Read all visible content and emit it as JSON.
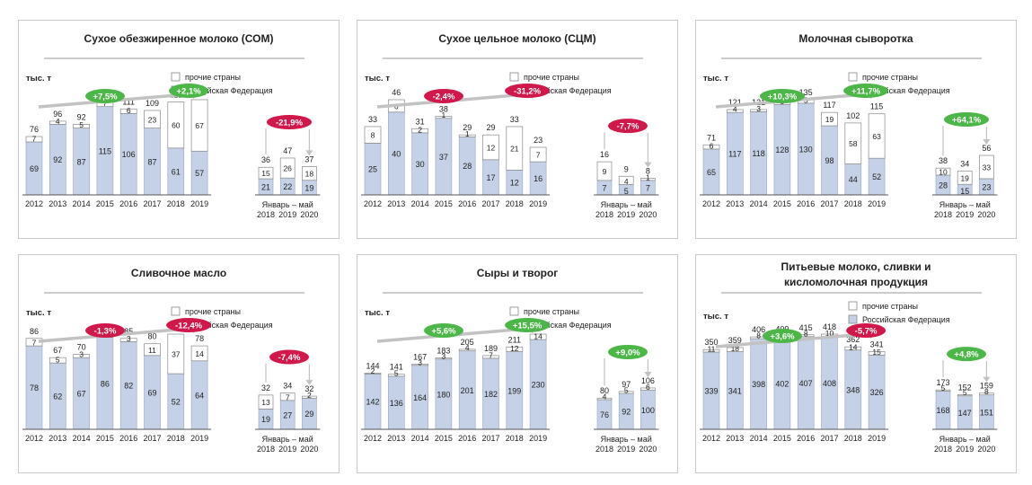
{
  "colors": {
    "russia": "#c5d1e6",
    "other": "#ffffff",
    "green": "#4cb648",
    "red": "#d0184b",
    "trend_arrow": "#c2c2c2",
    "axis": "#555555",
    "title_rule": "#999999"
  },
  "legend": {
    "other": "прочие страны",
    "russia": "Российская Федерация"
  },
  "period_label": "Январь – май",
  "chart_data": [
    {
      "type": "bar",
      "stacked": true,
      "title": "Сухое обезжиренное молоко (СОМ)",
      "ylabel": "тыс. т",
      "years": [
        "2012",
        "2013",
        "2014",
        "2015",
        "2016",
        "2017",
        "2018",
        "2019"
      ],
      "months": [
        "2018",
        "2019",
        "2020"
      ],
      "year_russia": [
        69,
        92,
        87,
        115,
        106,
        87,
        61,
        57
      ],
      "year_other": [
        7,
        4,
        5,
        7,
        6,
        23,
        60,
        67
      ],
      "year_total": [
        76,
        96,
        92,
        122,
        111,
        109,
        121,
        124
      ],
      "month_russia": [
        21,
        22,
        19
      ],
      "month_other": [
        15,
        26,
        18
      ],
      "month_total": [
        36,
        47,
        37
      ],
      "cagr": {
        "text": "+7,5%",
        "sign": "up"
      },
      "growth_2019": {
        "text": "+2,1%",
        "sign": "up"
      },
      "growth_jan_may": {
        "text": "-21,9%",
        "sign": "down"
      }
    },
    {
      "type": "bar",
      "stacked": true,
      "title": "Сухое цельное молоко (СЦМ)",
      "ylabel": "тыс. т",
      "years": [
        "2012",
        "2013",
        "2014",
        "2015",
        "2016",
        "2017",
        "2018",
        "2019"
      ],
      "months": [
        "2018",
        "2019",
        "2020"
      ],
      "year_russia": [
        25,
        40,
        30,
        37,
        28,
        17,
        12,
        16
      ],
      "year_other": [
        8,
        6,
        2,
        1,
        1,
        12,
        21,
        7
      ],
      "year_total": [
        33,
        46,
        31,
        38,
        29,
        29,
        33,
        23
      ],
      "month_russia": [
        7,
        5,
        7
      ],
      "month_other": [
        9,
        4,
        1
      ],
      "month_total": [
        16,
        9,
        8
      ],
      "cagr": {
        "text": "-2,4%",
        "sign": "down"
      },
      "growth_2019": {
        "text": "-31,2%",
        "sign": "down"
      },
      "growth_jan_may": {
        "text": "-7,7%",
        "sign": "down"
      }
    },
    {
      "type": "bar",
      "stacked": true,
      "title": "Молочная сыворотка",
      "ylabel": "тыс. т",
      "years": [
        "2012",
        "2013",
        "2014",
        "2015",
        "2016",
        "2017",
        "2018",
        "2019"
      ],
      "months": [
        "2018",
        "2019",
        "2020"
      ],
      "year_russia": [
        65,
        117,
        118,
        128,
        130,
        98,
        44,
        52
      ],
      "year_other": [
        6,
        4,
        3,
        3,
        5,
        19,
        58,
        63
      ],
      "year_total": [
        71,
        121,
        121,
        131,
        135,
        117,
        102,
        115
      ],
      "month_russia": [
        28,
        15,
        23
      ],
      "month_other": [
        10,
        19,
        33
      ],
      "month_total": [
        38,
        34,
        56
      ],
      "cagr": {
        "text": "+10,3%",
        "sign": "up"
      },
      "growth_2019": {
        "text": "+11,7%",
        "sign": "up"
      },
      "growth_jan_may": {
        "text": "+64,1%",
        "sign": "up"
      }
    },
    {
      "type": "bar",
      "stacked": true,
      "title": "Сливочное масло",
      "ylabel": "тыс. т",
      "years": [
        "2012",
        "2013",
        "2014",
        "2015",
        "2016",
        "2017",
        "2018",
        "2019"
      ],
      "months": [
        "2018",
        "2019",
        "2020"
      ],
      "year_russia": [
        78,
        62,
        67,
        86,
        82,
        69,
        52,
        64
      ],
      "year_other": [
        7,
        5,
        3,
        2,
        3,
        11,
        37,
        14
      ],
      "year_total": [
        86,
        67,
        70,
        88,
        85,
        80,
        89,
        78
      ],
      "month_russia": [
        19,
        27,
        29
      ],
      "month_other": [
        13,
        7,
        2
      ],
      "month_total": [
        32,
        34,
        32
      ],
      "cagr": {
        "text": "-1,3%",
        "sign": "down"
      },
      "growth_2019": {
        "text": "-12,4%",
        "sign": "down"
      },
      "growth_jan_may": {
        "text": "-7,4%",
        "sign": "down"
      }
    },
    {
      "type": "bar",
      "stacked": true,
      "title": "Сыры и творог",
      "ylabel": "тыс. т",
      "years": [
        "2012",
        "2013",
        "2014",
        "2015",
        "2016",
        "2017",
        "2018",
        "2019"
      ],
      "months": [
        "2018",
        "2019",
        "2020"
      ],
      "year_russia": [
        142,
        136,
        164,
        180,
        201,
        182,
        199,
        230
      ],
      "year_other": [
        2,
        5,
        3,
        3,
        4,
        7,
        12,
        14
      ],
      "year_total": [
        144,
        141,
        167,
        183,
        205,
        189,
        211,
        244
      ],
      "month_russia": [
        76,
        92,
        100
      ],
      "month_other": [
        4,
        5,
        6
      ],
      "month_total": [
        80,
        97,
        106
      ],
      "cagr": {
        "text": "+5,6%",
        "sign": "up"
      },
      "growth_2019": {
        "text": "+15,5%",
        "sign": "up"
      },
      "growth_jan_may": {
        "text": "+9,0%",
        "sign": "up"
      }
    },
    {
      "type": "bar",
      "stacked": true,
      "title": "Питьевые молоко, сливки и кисломолочная продукция",
      "title_lines": [
        "Питьевые молоко, сливки и",
        "кисломолочная продукция"
      ],
      "ylabel": "тыс. т",
      "years": [
        "2012",
        "2013",
        "2014",
        "2015",
        "2016",
        "2017",
        "2018",
        "2019"
      ],
      "months": [
        "2018",
        "2019",
        "2020"
      ],
      "year_russia": [
        339,
        341,
        398,
        402,
        407,
        408,
        348,
        326
      ],
      "year_other": [
        11,
        18,
        8,
        7,
        8,
        10,
        14,
        15
      ],
      "year_total": [
        350,
        359,
        406,
        409,
        415,
        418,
        362,
        341
      ],
      "month_russia": [
        168,
        147,
        151
      ],
      "month_other": [
        5,
        5,
        8
      ],
      "month_total": [
        173,
        152,
        159
      ],
      "cagr": {
        "text": "+3,6%",
        "sign": "up"
      },
      "growth_2019": {
        "text": "-5,7%",
        "sign": "down"
      },
      "growth_jan_may": {
        "text": "+4,8%",
        "sign": "up"
      }
    }
  ]
}
